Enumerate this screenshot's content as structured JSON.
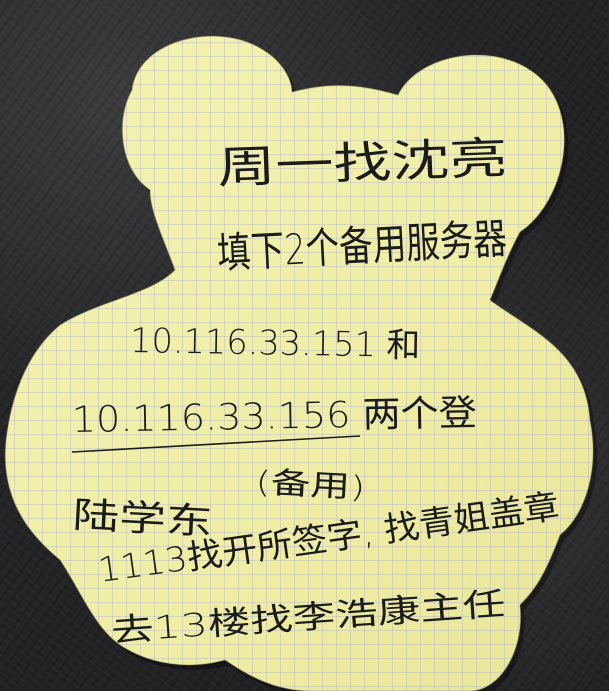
{
  "note": {
    "lines": [
      "周一找沈亮",
      "填下2个备用服务器",
      "10.116.33.151 和",
      "10.116.33.156 两个登",
      "(备用)",
      "陆学东",
      "1113找开所签字, 找青姐盖章",
      "去13楼找李浩康主任"
    ]
  },
  "colors": {
    "paper": "#f1f0a2",
    "grid": "#a7a6c8",
    "ink": "#1b1b1b",
    "background": "#26262a"
  }
}
